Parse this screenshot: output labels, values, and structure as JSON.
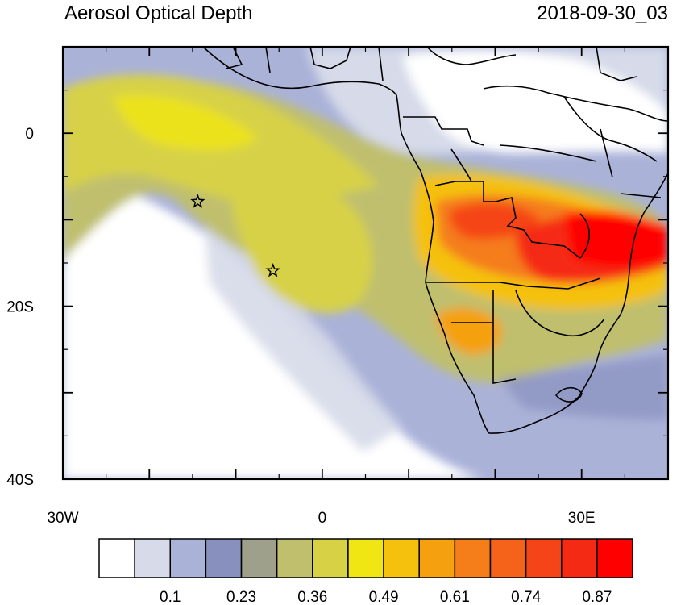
{
  "title": "Aerosol Optical Depth",
  "timestamp": "2018-09-30_03",
  "map": {
    "lon_range": [
      -30,
      40
    ],
    "lat_range": [
      -40,
      10
    ],
    "lon_ticks": [
      {
        "value": -30,
        "label": "30W"
      },
      {
        "value": 0,
        "label": "0"
      },
      {
        "value": 30,
        "label": "30E"
      }
    ],
    "lat_ticks": [
      {
        "value": 0,
        "label": "0"
      },
      {
        "value": -20,
        "label": "20S"
      },
      {
        "value": -40,
        "label": "40S"
      }
    ],
    "markers": [
      {
        "type": "star",
        "lon": -14.4,
        "lat": -7.9
      },
      {
        "type": "star",
        "lon": -5.7,
        "lat": -15.9
      }
    ]
  },
  "colorbar": {
    "colors": [
      "#ffffff",
      "#d6dae9",
      "#aab2d8",
      "#8890bd",
      "#9ea08c",
      "#bfbf6e",
      "#d7d146",
      "#f0e614",
      "#f5c10c",
      "#f5a00f",
      "#f57d1a",
      "#f5631a",
      "#f54418",
      "#f52a14",
      "#ff0000"
    ],
    "labels": [
      "0.1",
      "0.23",
      "0.36",
      "0.49",
      "0.61",
      "0.74",
      "0.87"
    ],
    "label_edges": [
      2,
      4,
      6,
      8,
      10,
      12,
      14
    ]
  }
}
